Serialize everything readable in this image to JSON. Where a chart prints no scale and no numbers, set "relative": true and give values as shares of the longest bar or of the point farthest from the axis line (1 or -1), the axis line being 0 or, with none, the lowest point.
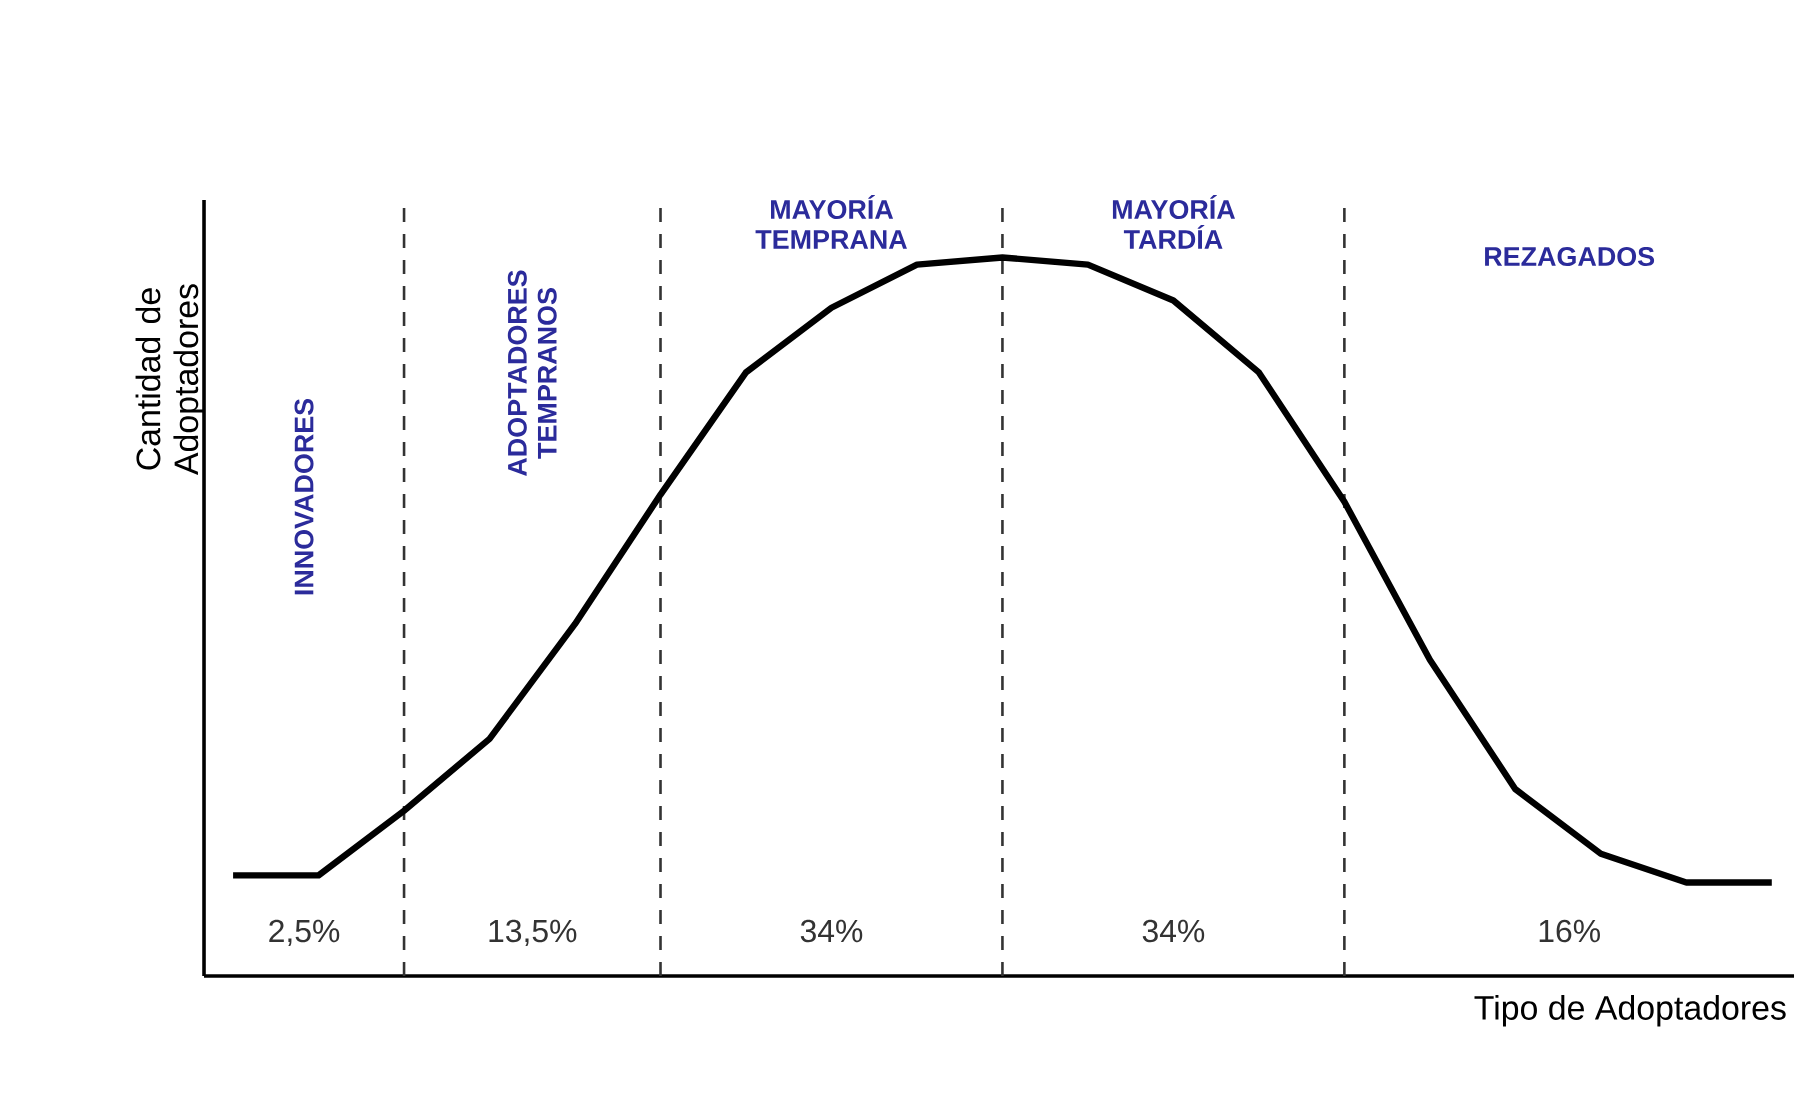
{
  "chart_data": {
    "type": "line",
    "relative": true,
    "xlabel": "Tipo de Adoptadores",
    "ylabel": "Cantidad de Adoptadores",
    "tick_labels": false,
    "grid": "x",
    "marker": "none",
    "line_style": "solid",
    "categories": [
      null,
      null,
      null,
      null,
      null,
      null,
      null,
      null,
      null,
      null,
      null,
      null,
      null,
      null,
      null,
      null,
      null,
      null,
      null
    ],
    "series": [
      {
        "color": "#000000",
        "values": [
          0.14,
          0.14,
          0.23,
          0.33,
          0.49,
          0.67,
          0.84,
          0.93,
          0.99,
          1,
          0.99,
          0.94,
          0.84,
          0.66,
          0.44,
          0.26,
          0.17,
          0.13,
          0.13
        ]
      }
    ],
    "annotations": [
      "INNOVADORES",
      "ADOPTADORES TEMPRANOS",
      "MAYORÍA TEMPRANA",
      "MAYORÍA TARDÍA",
      "REZAGADOS",
      "2,5%",
      "13,5%",
      "34%",
      "34%",
      "16%"
    ]
  }
}
